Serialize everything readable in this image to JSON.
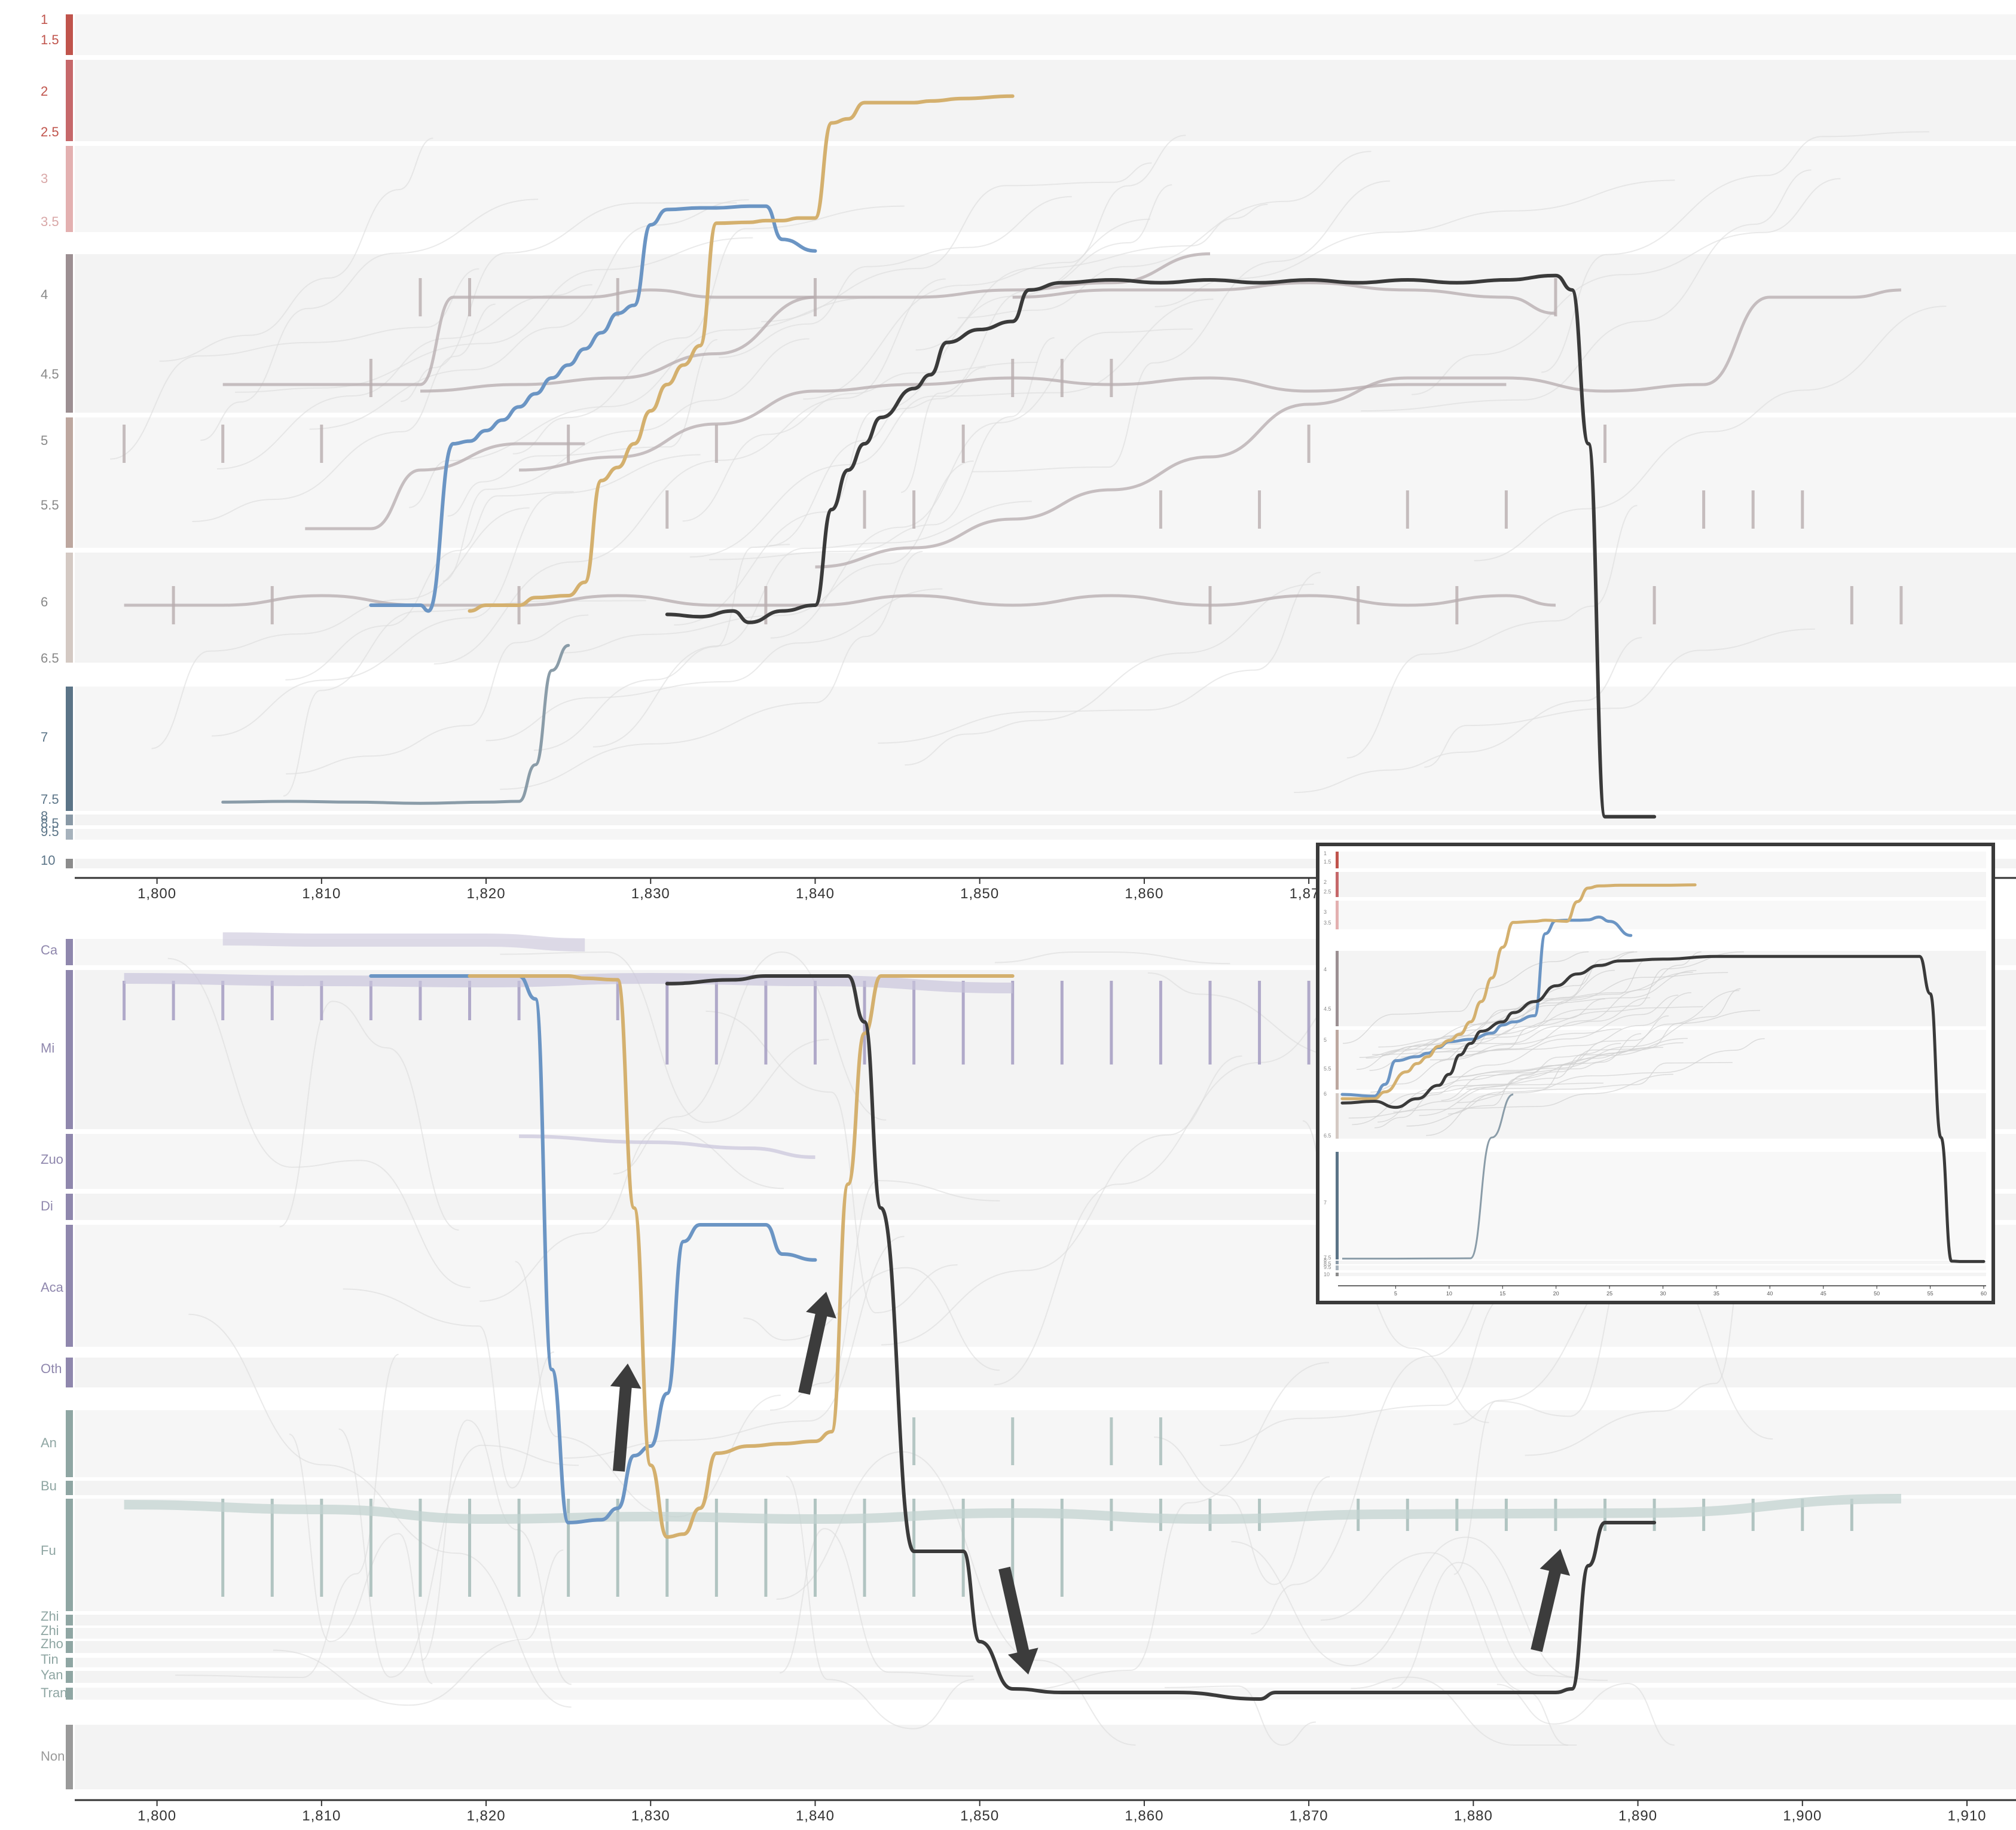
{
  "chart_data": [
    {
      "type": "line",
      "panel": "rank",
      "xlim": [
        1795,
        1910
      ],
      "x_ticks": [
        1800,
        1810,
        1820,
        1830,
        1840,
        1850,
        1860,
        1870
      ],
      "tick_labels": [
        "1,800",
        "1,810",
        "1,820",
        "1,830",
        "1,840",
        "1,850",
        "1,860",
        "1,870"
      ],
      "ylim": [
        1,
        10
      ],
      "y_reversed": true,
      "rank_labels": [
        "1",
        "1.5",
        "2",
        "2.5",
        "3",
        "3.5",
        "4",
        "4.5",
        "5",
        "5.5",
        "6",
        "6.5",
        "7",
        "7.5",
        "8",
        "8.5",
        "9.5",
        "10"
      ],
      "band_colors": {
        "1": "#c0544c",
        "2": "#c6686a",
        "3": "#e3b0b0",
        "4": "#9c8f92",
        "5": "#bda79f",
        "6": "#d4c9c3",
        "7": "#5b7487",
        "8": "#8999a6",
        "9": "#a6b2bc",
        "10": "#8c8c8c"
      },
      "series": [
        {
          "color": "#6b95c4",
          "x": [
            1813,
            1816,
            1816.5,
            1818,
            1819,
            1820,
            1821,
            1822,
            1823,
            1824,
            1825,
            1826,
            1827,
            1828,
            1829,
            1830,
            1831,
            1833,
            1834,
            1836,
            1837,
            1838,
            1840
          ],
          "y": [
            6.0,
            6.0,
            6.05,
            5.0,
            4.98,
            4.9,
            4.82,
            4.72,
            4.62,
            4.5,
            4.42,
            4.32,
            4.22,
            4.1,
            4.05,
            3.5,
            3.32,
            3.3,
            3.3,
            3.28,
            3.28,
            3.6,
            3.68
          ]
        },
        {
          "color": "#d4b06e",
          "x": [
            1819,
            1820,
            1822,
            1823,
            1825,
            1826,
            1827,
            1828,
            1829,
            1830,
            1831,
            1832,
            1833,
            1834,
            1836,
            1837,
            1838,
            1839,
            1840,
            1841,
            1842,
            1843,
            1846,
            1847,
            1849,
            1852
          ],
          "y": [
            6.05,
            6.0,
            6.0,
            5.96,
            5.95,
            5.88,
            5.28,
            5.18,
            5.0,
            4.75,
            4.55,
            4.42,
            4.3,
            3.48,
            3.47,
            3.45,
            3.45,
            3.42,
            3.42,
            2.35,
            2.3,
            2.1,
            2.1,
            2.08,
            2.05,
            2.02
          ]
        },
        {
          "color": "#3a3a3a",
          "x": [
            1831,
            1833,
            1835,
            1836,
            1838,
            1840,
            1841,
            1842,
            1843,
            1844,
            1846,
            1847,
            1848,
            1850,
            1852,
            1853,
            1855,
            1858,
            1861,
            1864,
            1867,
            1870,
            1873,
            1876,
            1879,
            1882,
            1885,
            1886,
            1887,
            1888,
            1891
          ],
          "y": [
            6.08,
            6.1,
            6.05,
            6.15,
            6.05,
            6.0,
            5.5,
            5.2,
            5.0,
            4.8,
            4.58,
            4.48,
            4.28,
            4.2,
            4.15,
            3.95,
            3.9,
            3.88,
            3.9,
            3.88,
            3.9,
            3.88,
            3.9,
            3.88,
            3.9,
            3.88,
            3.85,
            3.95,
            5.0,
            7.9,
            7.9
          ]
        },
        {
          "color": "#8a9ca8",
          "x": [
            1804,
            1808,
            1812,
            1816,
            1820,
            1822,
            1823,
            1824,
            1825
          ],
          "y": [
            7.52,
            7.5,
            7.52,
            7.55,
            7.52,
            7.5,
            7.2,
            6.55,
            6.35
          ]
        }
      ]
    },
    {
      "type": "line",
      "panel": "office",
      "xlim": [
        1795,
        1910
      ],
      "x_ticks": [
        1800,
        1810,
        1820,
        1830,
        1840,
        1850,
        1860,
        1870,
        1880,
        1890,
        1900,
        1910
      ],
      "tick_labels": [
        "1,800",
        "1,810",
        "1,820",
        "1,830",
        "1,840",
        "1,850",
        "1,860",
        "1,870",
        "1,880",
        "1,890",
        "1,900",
        "1,910"
      ],
      "office_categories": [
        "Ca",
        "Mi",
        "Zuo",
        "Di",
        "Aca",
        "Oth",
        "An",
        "Bu",
        "Fu",
        "Zhi",
        "Zhi",
        "Zho",
        "Tin",
        "Yan",
        "Tran",
        "Non"
      ],
      "band_colors": {
        "Ca": "#8f87ad",
        "Mi": "#8f87ad",
        "Zuo": "#8f87ad",
        "Di": "#8f87ad",
        "Aca": "#8f87ad",
        "Oth": "#8f87ad",
        "An": "#8fa6a3",
        "Bu": "#8fa6a3",
        "Fu": "#8fa6a3",
        "Zhi": "#8fa6a3",
        "Zho": "#8fa6a3",
        "Tin": "#8fa6a3",
        "Yan": "#8fa6a3",
        "Tran": "#8fa6a3",
        "Non": "#9a9a9a"
      },
      "series": [
        {
          "color": "#6b95c4",
          "x": [
            1813,
            1822,
            1823,
            1824,
            1825,
            1827,
            1828,
            1829,
            1830,
            1831,
            1832,
            1833,
            1835,
            1837,
            1838,
            1840
          ],
          "y": [
            1.0,
            1.0,
            1.3,
            6.0,
            8.4,
            8.38,
            8.3,
            7.8,
            7.6,
            6.5,
            4.4,
            4.2,
            4.2,
            4.2,
            4.55,
            4.62
          ]
        },
        {
          "color": "#d4b06e",
          "x": [
            1819,
            1825,
            1826,
            1828,
            1829,
            1830,
            1831,
            1832,
            1833,
            1834,
            1836,
            1838,
            1840,
            1841,
            1842,
            1843,
            1844,
            1852
          ],
          "y": [
            1.0,
            1.0,
            1.03,
            1.05,
            4.0,
            8.0,
            8.5,
            8.48,
            8.3,
            7.75,
            7.6,
            7.55,
            7.5,
            7.3,
            3.5,
            1.75,
            1.0,
            1.0
          ]
        },
        {
          "color": "#3a3a3a",
          "x": [
            1831,
            1835,
            1837,
            1842,
            1843,
            1844,
            1846,
            1849,
            1850,
            1852,
            1855,
            1862,
            1867,
            1868,
            1870,
            1885,
            1886,
            1887,
            1888,
            1891
          ],
          "y": [
            1.1,
            1.05,
            1.0,
            1.0,
            1.6,
            4.0,
            8.6,
            8.6,
            9.5,
            10.8,
            11.0,
            11.0,
            11.1,
            11.0,
            11.0,
            11.0,
            10.8,
            8.7,
            8.4,
            8.4
          ]
        }
      ]
    },
    {
      "type": "line",
      "panel": "inset",
      "xlim": [
        0,
        60
      ],
      "x_ticks": [
        5,
        10,
        15,
        20,
        25,
        30,
        35,
        40,
        45,
        50,
        55,
        60
      ],
      "tick_labels": [
        "5",
        "10",
        "15",
        "20",
        "25",
        "30",
        "35",
        "40",
        "45",
        "50",
        "55",
        "60"
      ],
      "ylim": [
        1,
        10
      ],
      "y_reversed": true,
      "rank_labels": [
        "1",
        "1.5",
        "2",
        "2.5",
        "3",
        "3.5",
        "4",
        "4.5",
        "5",
        "5.5",
        "6",
        "6.5",
        "7",
        "7.5",
        "8",
        "8.5",
        "9.5",
        "10"
      ],
      "series": [
        {
          "color": "#6b95c4",
          "x": [
            0,
            3,
            4,
            5,
            7,
            8,
            9,
            10,
            12,
            14,
            15,
            16,
            18,
            19,
            20,
            21,
            22,
            23,
            24,
            25,
            27
          ],
          "y": [
            6.0,
            6.02,
            5.8,
            5.35,
            5.28,
            5.22,
            5.12,
            5.02,
            4.98,
            4.88,
            4.75,
            4.7,
            4.6,
            3.6,
            3.32,
            3.3,
            3.3,
            3.28,
            3.15,
            3.35,
            3.62
          ]
        },
        {
          "color": "#d4b06e",
          "x": [
            0,
            3,
            4,
            6,
            7,
            8,
            9,
            10,
            11,
            12,
            13,
            14,
            15,
            16,
            18,
            19,
            21,
            22,
            23,
            24,
            26,
            30,
            33
          ],
          "y": [
            6.05,
            6.05,
            5.95,
            5.55,
            5.4,
            5.28,
            5.1,
            5.0,
            4.9,
            4.7,
            4.4,
            4.1,
            3.75,
            3.4,
            3.35,
            3.3,
            3.35,
            2.7,
            2.25,
            2.15,
            2.12,
            2.12,
            2.1
          ]
        },
        {
          "color": "#3a3a3a",
          "x": [
            0,
            3,
            5,
            7,
            9,
            10,
            11,
            12,
            13,
            15,
            16,
            18,
            20,
            22,
            24,
            26,
            30,
            35,
            40,
            45,
            50,
            54,
            55,
            56,
            57,
            58,
            60
          ],
          "y": [
            6.1,
            6.08,
            6.15,
            6.05,
            5.82,
            5.6,
            5.25,
            5.05,
            4.85,
            4.7,
            4.55,
            4.4,
            4.2,
            4.05,
            3.95,
            3.9,
            3.88,
            3.85,
            3.85,
            3.85,
            3.85,
            3.85,
            4.3,
            6.5,
            7.9,
            7.95,
            7.95
          ]
        }
      ]
    }
  ]
}
